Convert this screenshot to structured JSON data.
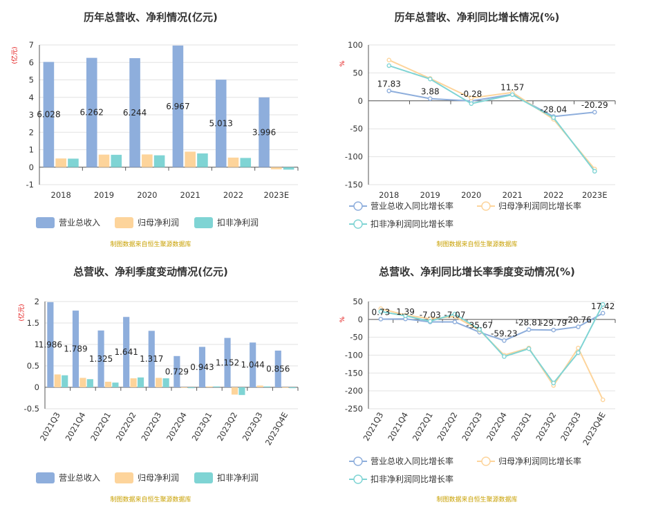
{
  "colors": {
    "revenue": "#8eaedc",
    "parent": "#fdd49b",
    "deducted": "#7fd4d4"
  },
  "chart_data": [
    {
      "id": "c1",
      "type": "bar",
      "title": "历年总营收、净利情况(亿元)",
      "unit": "(亿元)",
      "categories": [
        "2018",
        "2019",
        "2020",
        "2021",
        "2022",
        "2023E"
      ],
      "ylim": [
        -1,
        7
      ],
      "yticks": [
        -1,
        0,
        1,
        2,
        3,
        4,
        5,
        6,
        7
      ],
      "series": [
        {
          "name": "营业总收入",
          "color": "#8eaedc",
          "values": [
            6.028,
            6.262,
            6.244,
            6.967,
            5.013,
            3.996
          ],
          "labels": [
            "6.028",
            "6.262",
            "6.244",
            "6.967",
            "5.013",
            "3.996"
          ]
        },
        {
          "name": "归母净利润",
          "color": "#fdd49b",
          "values": [
            0.5,
            0.72,
            0.73,
            0.89,
            0.55,
            -0.12
          ]
        },
        {
          "name": "扣非净利润",
          "color": "#7fd4d4",
          "values": [
            0.49,
            0.71,
            0.68,
            0.79,
            0.53,
            -0.14
          ]
        }
      ],
      "source": "制图数据来自恒生聚源数据库"
    },
    {
      "id": "c2",
      "type": "line",
      "title": "历年总营收、净利同比增长情况(%)",
      "unit": "%",
      "categories": [
        "2018",
        "2019",
        "2020",
        "2021",
        "2022",
        "2023E"
      ],
      "ylim": [
        -150,
        100
      ],
      "yticks": [
        -150,
        -100,
        -50,
        0,
        50,
        100
      ],
      "series": [
        {
          "name": "营业总收入同比增长率",
          "color": "#8eaedc",
          "values": [
            17.83,
            3.88,
            -0.28,
            11.57,
            -28.04,
            -20.29
          ],
          "labels": [
            "17.83",
            "3.88",
            "-0.28",
            "11.57",
            "-28.04",
            "-20.29"
          ]
        },
        {
          "name": "归母净利润同比增长率",
          "color": "#fdd49b",
          "values": [
            73,
            40,
            5,
            15,
            -33,
            -122
          ]
        },
        {
          "name": "扣非净利润同比增长率",
          "color": "#7fd4d4",
          "values": [
            63,
            39,
            -5,
            11,
            -30,
            -126
          ]
        }
      ],
      "source": "制图数据来自恒生聚源数据库"
    },
    {
      "id": "c3",
      "type": "bar",
      "title": "总营收、净利季度变动情况(亿元)",
      "unit": "(亿元)",
      "categories": [
        "2021Q3",
        "2021Q4",
        "2022Q1",
        "2022Q2",
        "2022Q3",
        "2022Q4",
        "2023Q1",
        "2023Q2",
        "2023Q3",
        "2023Q4E"
      ],
      "ylim": [
        -0.5,
        2
      ],
      "yticks": [
        -0.5,
        0,
        0.5,
        1,
        1.5,
        2
      ],
      "series": [
        {
          "name": "营业总收入",
          "color": "#8eaedc",
          "values": [
            1.986,
            1.789,
            1.325,
            1.641,
            1.317,
            0.729,
            0.943,
            1.152,
            1.044,
            0.856
          ],
          "labels": [
            "1.986",
            "1.789",
            "1.325",
            "1.641",
            "1.317",
            "0.729",
            "0.943",
            "1.152",
            "1.044",
            "0.856"
          ]
        },
        {
          "name": "归母净利润",
          "color": "#fdd49b",
          "values": [
            0.3,
            0.22,
            0.13,
            0.21,
            0.22,
            -0.01,
            0.02,
            -0.17,
            0.04,
            -0.01
          ]
        },
        {
          "name": "扣非净利润",
          "color": "#7fd4d4",
          "values": [
            0.28,
            0.19,
            0.11,
            0.23,
            0.21,
            -0.02,
            0.02,
            -0.18,
            0.02,
            -0.02
          ]
        }
      ],
      "source": "制图数据来自恒生聚源数据库"
    },
    {
      "id": "c4",
      "type": "line",
      "title": "总营收、净利同比增长率季度变动情况(%)",
      "unit": "%",
      "categories": [
        "2021Q3",
        "2021Q4",
        "2022Q1",
        "2022Q2",
        "2022Q3",
        "2022Q4",
        "2023Q1",
        "2023Q2",
        "2023Q3",
        "2023Q4E"
      ],
      "ylim": [
        -250,
        50
      ],
      "yticks": [
        -250,
        -200,
        -150,
        -100,
        -50,
        0,
        50
      ],
      "series": [
        {
          "name": "营业总收入同比增长率",
          "color": "#8eaedc",
          "values": [
            0.73,
            1.39,
            -7.03,
            -7.07,
            -35.67,
            -59.23,
            -28.81,
            -29.79,
            -20.76,
            17.42
          ],
          "labels": [
            "0.73",
            "1.39",
            "-7.03",
            "-7.07",
            "-35.67",
            "-59.23",
            "-28.81",
            "-29.79",
            "-20.76",
            "17.42"
          ]
        },
        {
          "name": "归母净利润同比增长率",
          "color": "#fdd49b",
          "values": [
            30,
            12,
            2,
            8,
            -30,
            -100,
            -80,
            -185,
            -80,
            -225
          ]
        },
        {
          "name": "扣非净利润同比增长率",
          "color": "#7fd4d4",
          "values": [
            22,
            10,
            -5,
            15,
            -28,
            -104,
            -82,
            -178,
            -93,
            42
          ]
        }
      ],
      "source": "制图数据来自恒生聚源数据库"
    }
  ]
}
